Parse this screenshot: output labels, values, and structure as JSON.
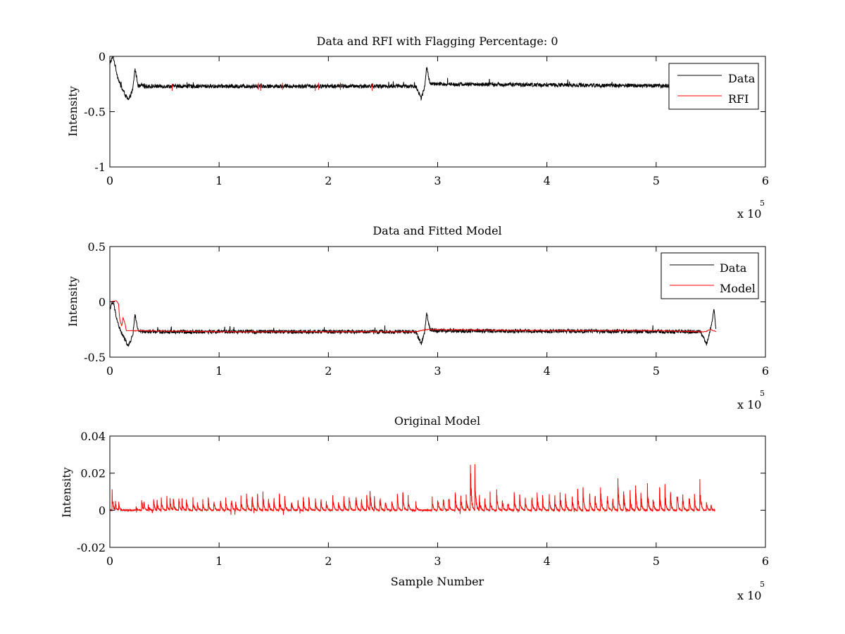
{
  "figure": {
    "background": "#ffffff",
    "axis_color": "#000000"
  },
  "chart_data": [
    {
      "type": "line",
      "title": "Data and RFI with Flagging Percentage: 0",
      "xlabel": "",
      "ylabel": "Intensity",
      "xlim": [
        0,
        600000
      ],
      "ylim": [
        -1,
        0
      ],
      "x_ticks": [
        0,
        1,
        2,
        3,
        4,
        5,
        6
      ],
      "x_tick_labels": [
        "0",
        "1",
        "2",
        "3",
        "4",
        "5",
        "6"
      ],
      "x_multiplier_label": "x 10",
      "x_multiplier_exp": "5",
      "y_ticks": [
        -1,
        -0.5,
        0
      ],
      "y_tick_labels": [
        "-1",
        "-0.5",
        "0"
      ],
      "grid": false,
      "legend_position": "top-right",
      "series": [
        {
          "name": "Data",
          "color": "#000000",
          "baseline": -0.27,
          "noise": 0.018,
          "points": [
            [
              0,
              -0.06
            ],
            [
              3000,
              0.0
            ],
            [
              7000,
              -0.18
            ],
            [
              10000,
              -0.27
            ],
            [
              17000,
              -0.4
            ],
            [
              21000,
              -0.3
            ],
            [
              23000,
              -0.11
            ],
            [
              26000,
              -0.27
            ],
            [
              280000,
              -0.27
            ],
            [
              285000,
              -0.38
            ],
            [
              288000,
              -0.28
            ],
            [
              290000,
              -0.1
            ],
            [
              293000,
              -0.25
            ],
            [
              555000,
              -0.27
            ]
          ]
        },
        {
          "name": "RFI",
          "color": "#ff0000",
          "marks": [
            [
              57000,
              -0.28
            ],
            [
              136000,
              -0.27
            ],
            [
              138000,
              -0.28
            ],
            [
              158000,
              -0.27
            ],
            [
              188000,
              -0.28
            ],
            [
              191000,
              -0.27
            ],
            [
              211000,
              -0.27
            ],
            [
              240000,
              -0.28
            ]
          ]
        }
      ]
    },
    {
      "type": "line",
      "title": "Data and Fitted Model",
      "xlabel": "",
      "ylabel": "Intensity",
      "xlim": [
        0,
        600000
      ],
      "ylim": [
        -0.5,
        0.5
      ],
      "x_ticks": [
        0,
        1,
        2,
        3,
        4,
        5,
        6
      ],
      "x_tick_labels": [
        "0",
        "1",
        "2",
        "3",
        "4",
        "5",
        "6"
      ],
      "x_multiplier_label": "x 10",
      "x_multiplier_exp": "5",
      "y_ticks": [
        -0.5,
        0,
        0.5
      ],
      "y_tick_labels": [
        "-0.5",
        "0",
        "0.5"
      ],
      "grid": false,
      "legend_position": "top-right",
      "series": [
        {
          "name": "Data",
          "color": "#000000",
          "baseline": -0.27,
          "noise": 0.018,
          "points": [
            [
              0,
              -0.06
            ],
            [
              3000,
              0.0
            ],
            [
              7000,
              -0.18
            ],
            [
              10000,
              -0.27
            ],
            [
              17000,
              -0.4
            ],
            [
              21000,
              -0.3
            ],
            [
              23000,
              -0.11
            ],
            [
              26000,
              -0.27
            ],
            [
              280000,
              -0.27
            ],
            [
              285000,
              -0.38
            ],
            [
              288000,
              -0.28
            ],
            [
              290000,
              -0.1
            ],
            [
              293000,
              -0.25
            ],
            [
              300000,
              -0.26
            ],
            [
              540000,
              -0.27
            ],
            [
              546000,
              -0.38
            ],
            [
              550000,
              -0.24
            ],
            [
              553000,
              -0.07
            ],
            [
              555000,
              -0.27
            ]
          ]
        },
        {
          "name": "Model",
          "color": "#ff0000",
          "points": [
            [
              0,
              0.0
            ],
            [
              6000,
              0.01
            ],
            [
              8000,
              -0.02
            ],
            [
              9000,
              -0.16
            ],
            [
              11000,
              -0.22
            ],
            [
              12000,
              -0.14
            ],
            [
              14000,
              -0.2
            ],
            [
              15000,
              -0.26
            ],
            [
              100000,
              -0.27
            ],
            [
              200000,
              -0.27
            ],
            [
              280000,
              -0.27
            ],
            [
              290000,
              -0.25
            ],
            [
              400000,
              -0.26
            ],
            [
              500000,
              -0.26
            ],
            [
              545000,
              -0.27
            ],
            [
              550000,
              -0.25
            ],
            [
              555000,
              -0.27
            ]
          ]
        }
      ]
    },
    {
      "type": "line",
      "title": "Original Model",
      "xlabel": "Sample Number",
      "ylabel": "Intensity",
      "xlim": [
        0,
        600000
      ],
      "ylim": [
        -0.02,
        0.04
      ],
      "x_ticks": [
        0,
        1,
        2,
        3,
        4,
        5,
        6
      ],
      "x_tick_labels": [
        "0",
        "1",
        "2",
        "3",
        "4",
        "5",
        "6"
      ],
      "x_multiplier_label": "x 10",
      "x_multiplier_exp": "5",
      "y_ticks": [
        -0.02,
        0,
        0.02,
        0.04
      ],
      "y_tick_labels": [
        "-0.02",
        "0",
        "0.02",
        "0.04"
      ],
      "grid": false,
      "legend_position": "none",
      "series": [
        {
          "color": "#ff0000",
          "baseline": 0,
          "spikes": [
            [
              2000,
              0.014
            ],
            [
              5000,
              0.006
            ],
            [
              8000,
              0.006
            ],
            [
              24000,
              0.003
            ],
            [
              29000,
              0.008
            ],
            [
              31000,
              0.006
            ],
            [
              35000,
              0.005
            ],
            [
              40000,
              0.007
            ],
            [
              43000,
              0.008
            ],
            [
              47000,
              0.009
            ],
            [
              52000,
              0.01
            ],
            [
              55000,
              0.008
            ],
            [
              58000,
              0.009
            ],
            [
              63000,
              0.01
            ],
            [
              66000,
              0.008
            ],
            [
              70000,
              0.009
            ],
            [
              76000,
              0.008
            ],
            [
              80000,
              0.006
            ],
            [
              85000,
              0.007
            ],
            [
              90000,
              0.008
            ],
            [
              95000,
              0.009
            ],
            [
              101000,
              0.01
            ],
            [
              106000,
              0.008
            ],
            [
              111000,
              0.01
            ],
            [
              115000,
              0.007
            ],
            [
              120000,
              0.009
            ],
            [
              125000,
              0.011
            ],
            [
              130000,
              0.012
            ],
            [
              135000,
              0.011
            ],
            [
              140000,
              0.012
            ],
            [
              145000,
              0.01
            ],
            [
              150000,
              0.01
            ],
            [
              155000,
              0.012
            ],
            [
              160000,
              0.009
            ],
            [
              166000,
              0.008
            ],
            [
              172000,
              0.007
            ],
            [
              177000,
              0.009
            ],
            [
              182000,
              0.01
            ],
            [
              188000,
              0.008
            ],
            [
              193000,
              0.009
            ],
            [
              198000,
              0.007
            ],
            [
              204000,
              0.011
            ],
            [
              209000,
              0.008
            ],
            [
              214000,
              0.009
            ],
            [
              219000,
              0.011
            ],
            [
              225000,
              0.012
            ],
            [
              230000,
              0.01
            ],
            [
              235000,
              0.012
            ],
            [
              238000,
              0.019
            ],
            [
              242000,
              0.009
            ],
            [
              247000,
              0.011
            ],
            [
              252000,
              0.008
            ],
            [
              258000,
              0.009
            ],
            [
              263000,
              0.012
            ],
            [
              268000,
              0.013
            ],
            [
              273000,
              0.008
            ],
            [
              280000,
              0.006
            ],
            [
              295000,
              0.008
            ],
            [
              300000,
              0.01
            ],
            [
              305000,
              0.011
            ],
            [
              310000,
              0.012
            ],
            [
              316000,
              0.013
            ],
            [
              321000,
              0.014
            ],
            [
              326000,
              0.012
            ],
            [
              330000,
              0.029
            ],
            [
              334000,
              0.03
            ],
            [
              338000,
              0.012
            ],
            [
              343000,
              0.01
            ],
            [
              348000,
              0.011
            ],
            [
              354000,
              0.012
            ],
            [
              359000,
              0.009
            ],
            [
              364000,
              0.008
            ],
            [
              370000,
              0.011
            ],
            [
              375000,
              0.012
            ],
            [
              380000,
              0.01
            ],
            [
              386000,
              0.013
            ],
            [
              391000,
              0.012
            ],
            [
              396000,
              0.011
            ],
            [
              402000,
              0.012
            ],
            [
              407000,
              0.011
            ],
            [
              412000,
              0.013
            ],
            [
              417000,
              0.012
            ],
            [
              423000,
              0.011
            ],
            [
              428000,
              0.016
            ],
            [
              433000,
              0.014
            ],
            [
              439000,
              0.012
            ],
            [
              444000,
              0.013
            ],
            [
              449000,
              0.017
            ],
            [
              455000,
              0.015
            ],
            [
              460000,
              0.012
            ],
            [
              465000,
              0.02
            ],
            [
              470000,
              0.016
            ],
            [
              476000,
              0.013
            ],
            [
              481000,
              0.018
            ],
            [
              486000,
              0.012
            ],
            [
              492000,
              0.017
            ],
            [
              497000,
              0.011
            ],
            [
              503000,
              0.016
            ],
            [
              508000,
              0.015
            ],
            [
              513000,
              0.013
            ],
            [
              519000,
              0.016
            ],
            [
              524000,
              0.014
            ],
            [
              530000,
              0.012
            ],
            [
              535000,
              0.011
            ],
            [
              540000,
              0.02
            ],
            [
              546000,
              0.006
            ],
            [
              550000,
              0.004
            ],
            [
              554000,
              0.002
            ]
          ]
        }
      ]
    }
  ]
}
